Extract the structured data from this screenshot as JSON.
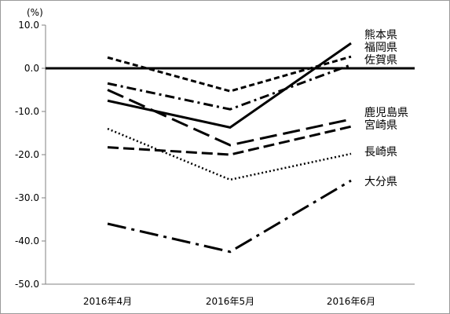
{
  "chart_data": {
    "type": "line",
    "unit_label": "(%)",
    "categories": [
      "2016年4月",
      "2016年5月",
      "2016年6月"
    ],
    "ylim": [
      -50,
      10
    ],
    "yticks": [
      "10.0",
      "0.0",
      "-10.0",
      "-20.0",
      "-30.0",
      "-40.0",
      "-50.0"
    ],
    "grid": false,
    "zero_line": true,
    "legend_placement": "right, labels at line ends",
    "series": [
      {
        "name": "熊本県",
        "values": [
          -7.5,
          -13.7,
          5.8
        ],
        "dash": "solid"
      },
      {
        "name": "福岡県",
        "values": [
          2.5,
          -5.3,
          2.7
        ],
        "dash": "short-dash"
      },
      {
        "name": "佐賀県",
        "values": [
          -3.5,
          -9.5,
          0.8
        ],
        "dash": "dash-dot"
      },
      {
        "name": "鹿児島県",
        "values": [
          -5.0,
          -17.8,
          -11.8
        ],
        "dash": "long-dash"
      },
      {
        "name": "宮崎県",
        "values": [
          -18.3,
          -20.0,
          -13.5
        ],
        "dash": "medium-dash"
      },
      {
        "name": "長崎県",
        "values": [
          -14.0,
          -25.8,
          -19.8
        ],
        "dash": "dotted"
      },
      {
        "name": "大分県",
        "values": [
          -36.0,
          -42.5,
          -26.0
        ],
        "dash": "long-dash-dot"
      }
    ],
    "colors": {
      "line": "#000000",
      "axis": "#808080"
    }
  }
}
